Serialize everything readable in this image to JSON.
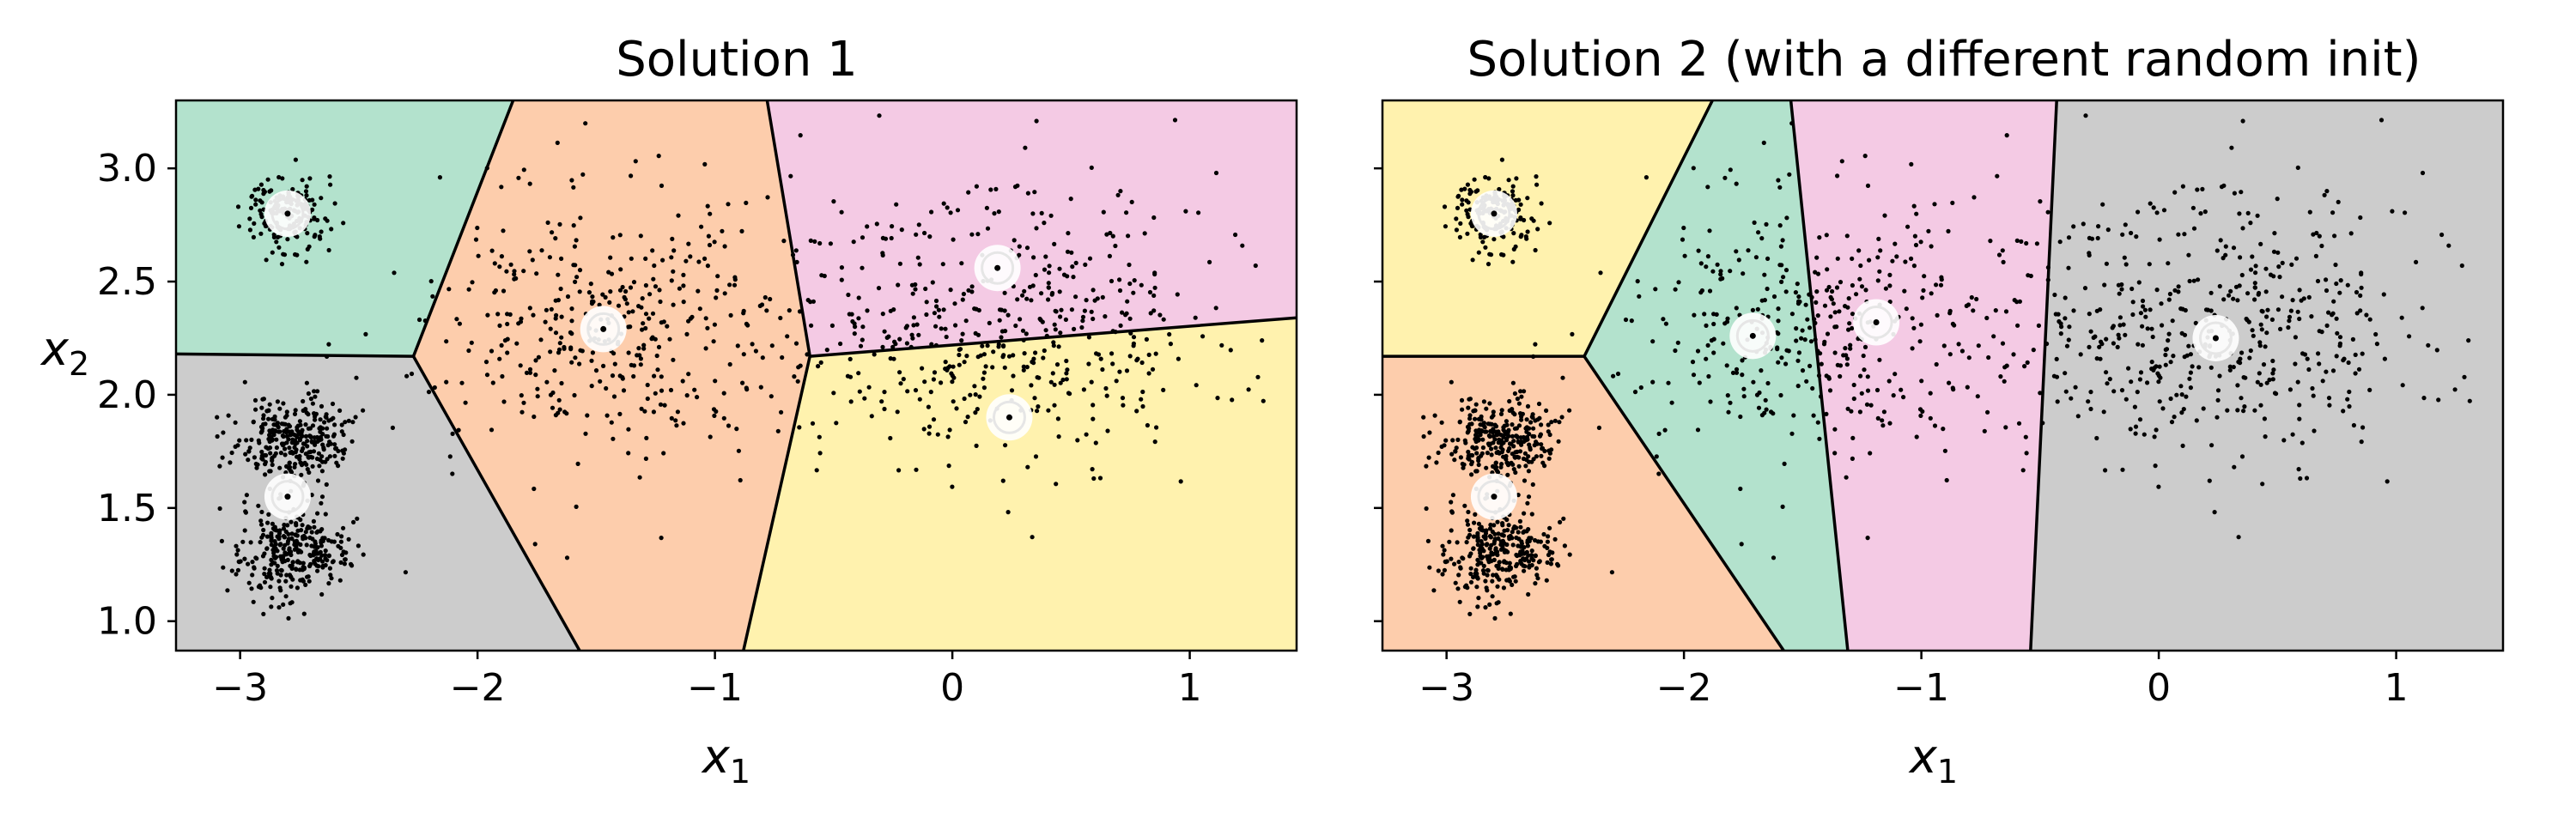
{
  "chart_data": [
    {
      "type": "scatter",
      "title": "Solution 1",
      "xlabel": "x",
      "xlabel_sub": "1",
      "ylabel": "x",
      "ylabel_sub": "2",
      "xlim": [
        -3.27,
        1.45
      ],
      "ylim": [
        0.87,
        3.3
      ],
      "xticks": [
        -3,
        -2,
        -1,
        0,
        1
      ],
      "xtick_labels": [
        "−3",
        "−2",
        "−1",
        "0",
        "1"
      ],
      "yticks": [
        1.0,
        1.5,
        2.0,
        2.5,
        3.0
      ],
      "ytick_labels": [
        "1.0",
        "1.5",
        "2.0",
        "2.5",
        "3.0"
      ],
      "grid": false,
      "point_color": "#000000",
      "region_colors": [
        "#b3e2cd",
        "#cccccc",
        "#fdcdac",
        "#f4cae4",
        "#fff2ae"
      ],
      "regions": [
        {
          "color": "#b3e2cd",
          "polygon": [
            [
              -3.27,
              3.3
            ],
            [
              -1.85,
              3.3
            ],
            [
              -2.27,
              2.17
            ],
            [
              -3.27,
              2.18
            ]
          ]
        },
        {
          "color": "#cccccc",
          "polygon": [
            [
              -3.27,
              2.18
            ],
            [
              -2.27,
              2.17
            ],
            [
              -1.57,
              0.87
            ],
            [
              -3.27,
              0.87
            ]
          ]
        },
        {
          "color": "#fdcdac",
          "polygon": [
            [
              -1.85,
              3.3
            ],
            [
              -0.78,
              3.3
            ],
            [
              -0.6,
              2.17
            ],
            [
              -0.88,
              0.87
            ],
            [
              -1.57,
              0.87
            ],
            [
              -2.27,
              2.17
            ]
          ]
        },
        {
          "color": "#f4cae4",
          "polygon": [
            [
              -0.78,
              3.3
            ],
            [
              1.45,
              3.3
            ],
            [
              1.45,
              2.34
            ],
            [
              -0.6,
              2.17
            ]
          ]
        },
        {
          "color": "#fff2ae",
          "polygon": [
            [
              -0.6,
              2.17
            ],
            [
              1.45,
              2.34
            ],
            [
              1.45,
              0.87
            ],
            [
              -0.88,
              0.87
            ]
          ]
        }
      ],
      "boundaries": [
        [
          [
            -1.85,
            3.3
          ],
          [
            -2.27,
            2.17
          ]
        ],
        [
          [
            -3.27,
            2.18
          ],
          [
            -2.27,
            2.17
          ]
        ],
        [
          [
            -2.27,
            2.17
          ],
          [
            -1.57,
            0.87
          ]
        ],
        [
          [
            -0.78,
            3.3
          ],
          [
            -0.6,
            2.17
          ]
        ],
        [
          [
            -0.6,
            2.17
          ],
          [
            -0.88,
            0.87
          ]
        ],
        [
          [
            -0.6,
            2.17
          ],
          [
            1.45,
            2.34
          ]
        ]
      ],
      "centroids": [
        {
          "x": -2.8,
          "y": 2.8
        },
        {
          "x": -2.8,
          "y": 1.55
        },
        {
          "x": -1.47,
          "y": 2.29
        },
        {
          "x": 0.19,
          "y": 2.56
        },
        {
          "x": 0.24,
          "y": 1.9
        }
      ],
      "blobs": [
        {
          "x": -2.8,
          "y": 2.8,
          "sx": 0.08,
          "sy": 0.08,
          "n": 170
        },
        {
          "x": -2.79,
          "y": 1.3,
          "sx": 0.12,
          "sy": 0.1,
          "n": 300
        },
        {
          "x": -2.78,
          "y": 1.8,
          "sx": 0.12,
          "sy": 0.09,
          "n": 300
        },
        {
          "x": -1.45,
          "y": 2.28,
          "sx": 0.38,
          "sy": 0.3,
          "n": 400
        },
        {
          "x": 0.2,
          "y": 2.3,
          "sx": 0.46,
          "sy": 0.32,
          "n": 500
        }
      ]
    },
    {
      "type": "scatter",
      "title": "Solution 2 (with a different random init)",
      "xlabel": "x",
      "xlabel_sub": "1",
      "xlim": [
        -3.27,
        1.45
      ],
      "ylim": [
        0.87,
        3.3
      ],
      "xticks": [
        -3,
        -2,
        -1,
        0,
        1
      ],
      "xtick_labels": [
        "−3",
        "−2",
        "−1",
        "0",
        "1"
      ],
      "yticks": [
        1.0,
        1.5,
        2.0,
        2.5,
        3.0
      ],
      "grid": false,
      "point_color": "#000000",
      "region_colors": [
        "#fff2ae",
        "#fdcdac",
        "#b3e2cd",
        "#f4cae4",
        "#cccccc"
      ],
      "regions": [
        {
          "color": "#fff2ae",
          "polygon": [
            [
              -3.27,
              3.3
            ],
            [
              -1.88,
              3.3
            ],
            [
              -2.42,
              2.17
            ],
            [
              -3.27,
              2.17
            ]
          ]
        },
        {
          "color": "#fdcdac",
          "polygon": [
            [
              -3.27,
              2.17
            ],
            [
              -2.42,
              2.17
            ],
            [
              -1.58,
              0.87
            ],
            [
              -3.27,
              0.87
            ]
          ]
        },
        {
          "color": "#b3e2cd",
          "polygon": [
            [
              -1.88,
              3.3
            ],
            [
              -1.55,
              3.3
            ],
            [
              -1.31,
              0.87
            ],
            [
              -1.58,
              0.87
            ],
            [
              -2.42,
              2.17
            ]
          ]
        },
        {
          "color": "#f4cae4",
          "polygon": [
            [
              -1.55,
              3.3
            ],
            [
              -0.43,
              3.3
            ],
            [
              -0.54,
              0.87
            ],
            [
              -1.31,
              0.87
            ]
          ]
        },
        {
          "color": "#cccccc",
          "polygon": [
            [
              -0.43,
              3.3
            ],
            [
              1.45,
              3.3
            ],
            [
              1.45,
              0.87
            ],
            [
              -0.54,
              0.87
            ]
          ]
        }
      ],
      "boundaries": [
        [
          [
            -1.88,
            3.3
          ],
          [
            -2.42,
            2.17
          ]
        ],
        [
          [
            -3.27,
            2.17
          ],
          [
            -2.42,
            2.17
          ]
        ],
        [
          [
            -2.42,
            2.17
          ],
          [
            -1.58,
            0.87
          ]
        ],
        [
          [
            -1.55,
            3.3
          ],
          [
            -1.31,
            0.87
          ]
        ],
        [
          [
            -0.43,
            3.3
          ],
          [
            -0.54,
            0.87
          ]
        ]
      ],
      "centroids": [
        {
          "x": -2.8,
          "y": 2.8
        },
        {
          "x": -2.8,
          "y": 1.55
        },
        {
          "x": -1.71,
          "y": 2.26
        },
        {
          "x": -1.19,
          "y": 2.32
        },
        {
          "x": 0.24,
          "y": 2.25
        }
      ],
      "blobs": [
        {
          "x": -2.8,
          "y": 2.8,
          "sx": 0.08,
          "sy": 0.08,
          "n": 170
        },
        {
          "x": -2.79,
          "y": 1.3,
          "sx": 0.12,
          "sy": 0.1,
          "n": 300
        },
        {
          "x": -2.78,
          "y": 1.8,
          "sx": 0.12,
          "sy": 0.09,
          "n": 300
        },
        {
          "x": -1.45,
          "y": 2.28,
          "sx": 0.38,
          "sy": 0.3,
          "n": 400
        },
        {
          "x": 0.2,
          "y": 2.3,
          "sx": 0.46,
          "sy": 0.32,
          "n": 500
        }
      ]
    }
  ]
}
